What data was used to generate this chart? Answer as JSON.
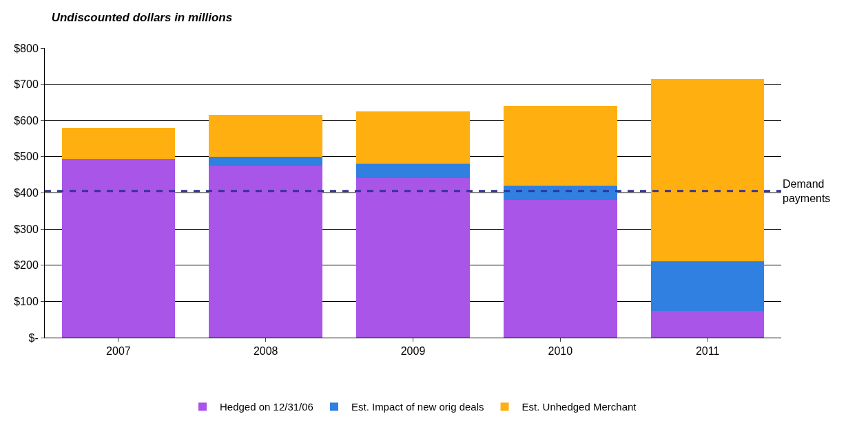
{
  "chart_data": {
    "type": "bar",
    "title": "Undiscounted dollars in millions",
    "stacked": true,
    "categories": [
      "2007",
      "2008",
      "2009",
      "2010",
      "2011"
    ],
    "series": [
      {
        "name": "Hedged on 12/31/06",
        "color": "#a855e8",
        "values": [
          495,
          475,
          440,
          380,
          75
        ]
      },
      {
        "name": "Est. Impact of new orig deals",
        "color": "#2f80e0",
        "values": [
          0,
          25,
          40,
          40,
          135
        ]
      },
      {
        "name": "Est. Unhedged Merchant",
        "color": "#ffb010",
        "values": [
          85,
          115,
          145,
          220,
          505
        ]
      }
    ],
    "ylim": [
      0,
      800
    ],
    "yticks": [
      {
        "value": 0,
        "label": "$-"
      },
      {
        "value": 100,
        "label": "$100"
      },
      {
        "value": 200,
        "label": "$200"
      },
      {
        "value": 300,
        "label": "$300"
      },
      {
        "value": 400,
        "label": "$400"
      },
      {
        "value": 500,
        "label": "$500"
      },
      {
        "value": 600,
        "label": "$600"
      },
      {
        "value": 700,
        "label": "$700"
      },
      {
        "value": 800,
        "label": "$800"
      }
    ],
    "grid": "y",
    "legend": "bottom",
    "ref_lines": [
      {
        "axis": "y",
        "value": 405,
        "label": "Demand payments",
        "color": "#333399",
        "line_style": "dashed"
      }
    ]
  }
}
